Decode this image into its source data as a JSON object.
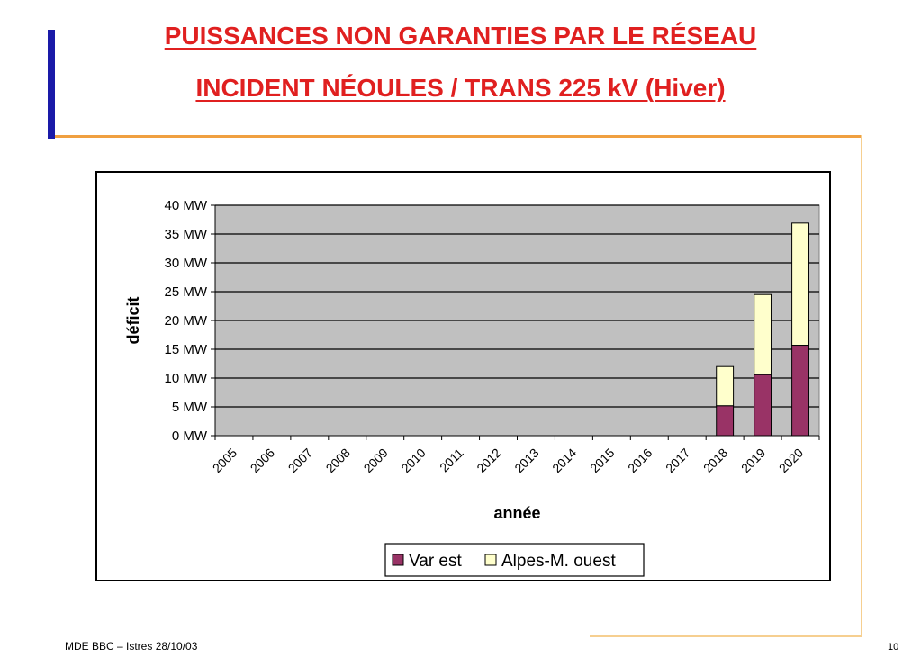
{
  "slide": {
    "title_line1": "PUISSANCES NON GARANTIES PAR LE RÉSEAU",
    "title_line2": "INCIDENT NÉOULES / TRANS 225 kV (Hiver)",
    "footer_left": "MDE BBC – Istres 28/10/03",
    "page_number": "10",
    "colors": {
      "title": "#e02020",
      "accent_bar": "#1a1aa8",
      "rule": "#f0a040"
    }
  },
  "chart_data": {
    "type": "bar",
    "stacked": true,
    "categories": [
      "2005",
      "2006",
      "2007",
      "2008",
      "2009",
      "2010",
      "2011",
      "2012",
      "2013",
      "2014",
      "2015",
      "2016",
      "2017",
      "2018",
      "2019",
      "2020"
    ],
    "series": [
      {
        "name": "Var est",
        "color": "#993366",
        "values": [
          0,
          0,
          0,
          0,
          0,
          0,
          0,
          0,
          0,
          0,
          0,
          0,
          0,
          5.2,
          10.6,
          15.7
        ]
      },
      {
        "name": "Alpes-M. ouest",
        "color": "#ffffcc",
        "values": [
          0,
          0,
          0,
          0,
          0,
          0,
          0,
          0,
          0,
          0,
          0,
          0,
          0,
          6.8,
          13.9,
          21.2
        ]
      }
    ],
    "xlabel": "année",
    "ylabel": "déficit",
    "ylim": [
      0,
      40
    ],
    "yticks": [
      "0 MW",
      "5 MW",
      "10 MW",
      "15 MW",
      "20 MW",
      "25 MW",
      "30 MW",
      "35 MW",
      "40 MW"
    ],
    "plot_background": "#c0c0c0",
    "grid": true,
    "legend_position": "bottom-right"
  }
}
